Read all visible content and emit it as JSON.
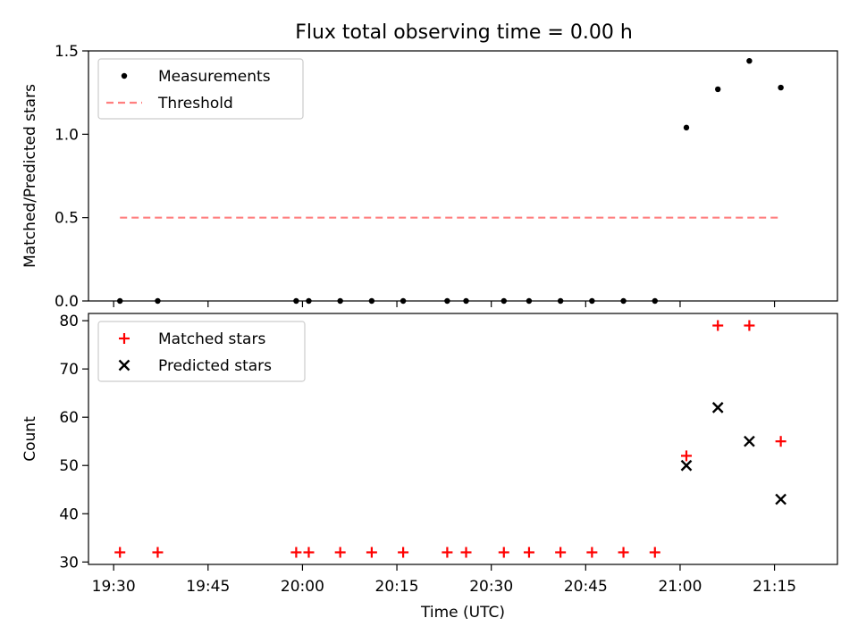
{
  "title": "Flux total observing time = 0.00 h",
  "chart_data": [
    {
      "type": "scatter",
      "ylabel": "Matched/Predicted stars",
      "xlabel": "",
      "ylim": [
        0,
        1.5
      ],
      "xlim_minutes_utc": [
        "19:26",
        "21:25"
      ],
      "yticks": [
        0.0,
        0.5,
        1.0,
        1.5
      ],
      "ytick_labels": [
        "0.0",
        "0.5",
        "1.0",
        "1.5"
      ],
      "legend": {
        "position": "top-left",
        "entries": [
          "Measurements",
          "Threshold"
        ]
      },
      "series": [
        {
          "name": "Measurements",
          "marker": "dot",
          "color": "#000000",
          "x": [
            "19:31",
            "19:37",
            "19:59",
            "20:01",
            "20:06",
            "20:11",
            "20:16",
            "20:23",
            "20:26",
            "20:32",
            "20:36",
            "20:41",
            "20:46",
            "20:51",
            "20:56",
            "21:01",
            "21:06",
            "21:11",
            "21:16"
          ],
          "y": [
            0,
            0,
            0,
            0,
            0,
            0,
            0,
            0,
            0,
            0,
            0,
            0,
            0,
            0,
            0,
            1.04,
            1.27,
            1.44,
            1.28
          ]
        },
        {
          "name": "Threshold",
          "style": "dashed",
          "color": "#ff7f7f",
          "x": [
            "19:31",
            "21:16"
          ],
          "y": [
            0.5,
            0.5
          ]
        }
      ]
    },
    {
      "type": "scatter",
      "ylabel": "Count",
      "xlabel": "Time (UTC)",
      "ylim": [
        29.5,
        81.5
      ],
      "yticks": [
        30,
        40,
        50,
        60,
        70,
        80
      ],
      "ytick_labels": [
        "30",
        "40",
        "50",
        "60",
        "70",
        "80"
      ],
      "xticks": [
        "19:30",
        "19:45",
        "20:00",
        "20:15",
        "20:30",
        "20:45",
        "21:00",
        "21:15"
      ],
      "legend": {
        "position": "top-left",
        "entries": [
          "Matched stars",
          "Predicted stars"
        ]
      },
      "series": [
        {
          "name": "Matched stars",
          "marker": "plus",
          "color": "#ff0000",
          "x": [
            "19:31",
            "19:37",
            "19:59",
            "20:01",
            "20:06",
            "20:11",
            "20:16",
            "20:23",
            "20:26",
            "20:32",
            "20:36",
            "20:41",
            "20:46",
            "20:51",
            "20:56",
            "21:01",
            "21:06",
            "21:11",
            "21:16"
          ],
          "y": [
            32,
            32,
            32,
            32,
            32,
            32,
            32,
            32,
            32,
            32,
            32,
            32,
            32,
            32,
            32,
            52,
            79,
            79,
            55
          ]
        },
        {
          "name": "Predicted stars",
          "marker": "x",
          "color": "#000000",
          "x": [
            "21:01",
            "21:06",
            "21:11",
            "21:16"
          ],
          "y": [
            50,
            62,
            55,
            43
          ]
        }
      ]
    }
  ]
}
